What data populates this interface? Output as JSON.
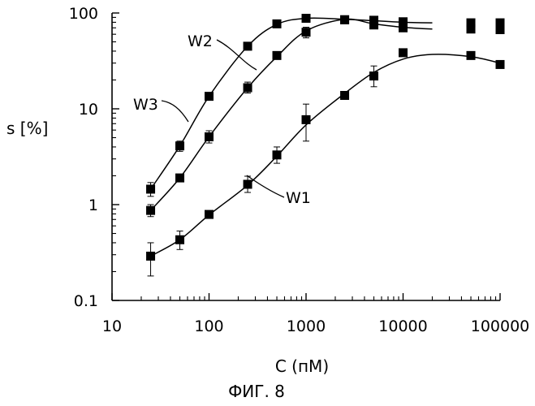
{
  "chart_data": {
    "type": "scatter",
    "x_scale": "log",
    "y_scale": "log",
    "xlabel": "C (пМ)",
    "ylabel": "s [%]",
    "caption": "ФИГ. 8",
    "xlim": [
      10,
      100000
    ],
    "ylim": [
      0.1,
      100
    ],
    "x_ticks": [
      {
        "value": 10,
        "label": "10"
      },
      {
        "value": 100,
        "label": "100"
      },
      {
        "value": 1000,
        "label": "1000"
      },
      {
        "value": 10000,
        "label": "10000"
      },
      {
        "value": 100000,
        "label": "100000"
      }
    ],
    "y_ticks": [
      {
        "value": 0.1,
        "label": "0.1"
      },
      {
        "value": 1,
        "label": "1"
      },
      {
        "value": 10,
        "label": "10"
      },
      {
        "value": 100,
        "label": "100"
      }
    ],
    "grid": false,
    "legend": "none",
    "marker": "square",
    "connected_by": "smooth line",
    "series": [
      {
        "name": "W1",
        "x": [
          25,
          50,
          100,
          250,
          500,
          1000,
          2500,
          5000,
          10000,
          50000,
          100000
        ],
        "y": [
          0.29,
          0.43,
          0.79,
          1.63,
          3.3,
          7.7,
          13.8,
          22,
          38.5,
          36,
          29
        ],
        "y_err_low": [
          0.18,
          0.34,
          0.75,
          1.34,
          2.7,
          4.6,
          13.5,
          17,
          37,
          34,
          28
        ],
        "y_err_high": [
          0.4,
          0.53,
          0.84,
          1.98,
          4.0,
          11.2,
          14.1,
          28,
          40,
          39,
          30
        ],
        "curve_y": [
          0.29,
          0.43,
          0.78,
          1.6,
          3.2,
          6.8,
          14.5,
          24,
          33,
          37,
          35,
          30
        ]
      },
      {
        "name": "W2",
        "x": [
          25,
          50,
          100,
          250,
          500,
          1000,
          2500,
          5000,
          10000,
          50000,
          100000
        ],
        "y": [
          0.87,
          1.9,
          5.1,
          16.6,
          36,
          63,
          85,
          75,
          70,
          68,
          67
        ],
        "y_err_low": [
          0.75,
          1.8,
          4.4,
          14.6,
          34,
          55,
          83,
          73,
          68,
          66,
          65
        ],
        "y_err_high": [
          1.0,
          2.0,
          5.9,
          19,
          38,
          71,
          87,
          77,
          72,
          70,
          69
        ],
        "curve_y": [
          0.87,
          1.9,
          5.1,
          16.6,
          35,
          65,
          86,
          77,
          71,
          68,
          67
        ]
      },
      {
        "name": "W3",
        "x": [
          25,
          50,
          100,
          250,
          500,
          1000,
          2500,
          5000,
          10000,
          50000,
          100000
        ],
        "y": [
          1.45,
          4.1,
          13.5,
          45,
          77,
          88,
          85,
          84,
          81,
          79,
          79
        ],
        "y_err_low": [
          1.22,
          3.6,
          12.5,
          43,
          75,
          86,
          83,
          82,
          79,
          77,
          77
        ],
        "y_err_high": [
          1.7,
          4.6,
          14.5,
          47,
          79,
          90,
          87,
          86,
          83,
          81,
          81
        ],
        "curve_y": [
          1.45,
          4.1,
          13.5,
          45,
          76,
          88,
          86,
          83,
          80,
          79,
          79
        ]
      }
    ]
  }
}
